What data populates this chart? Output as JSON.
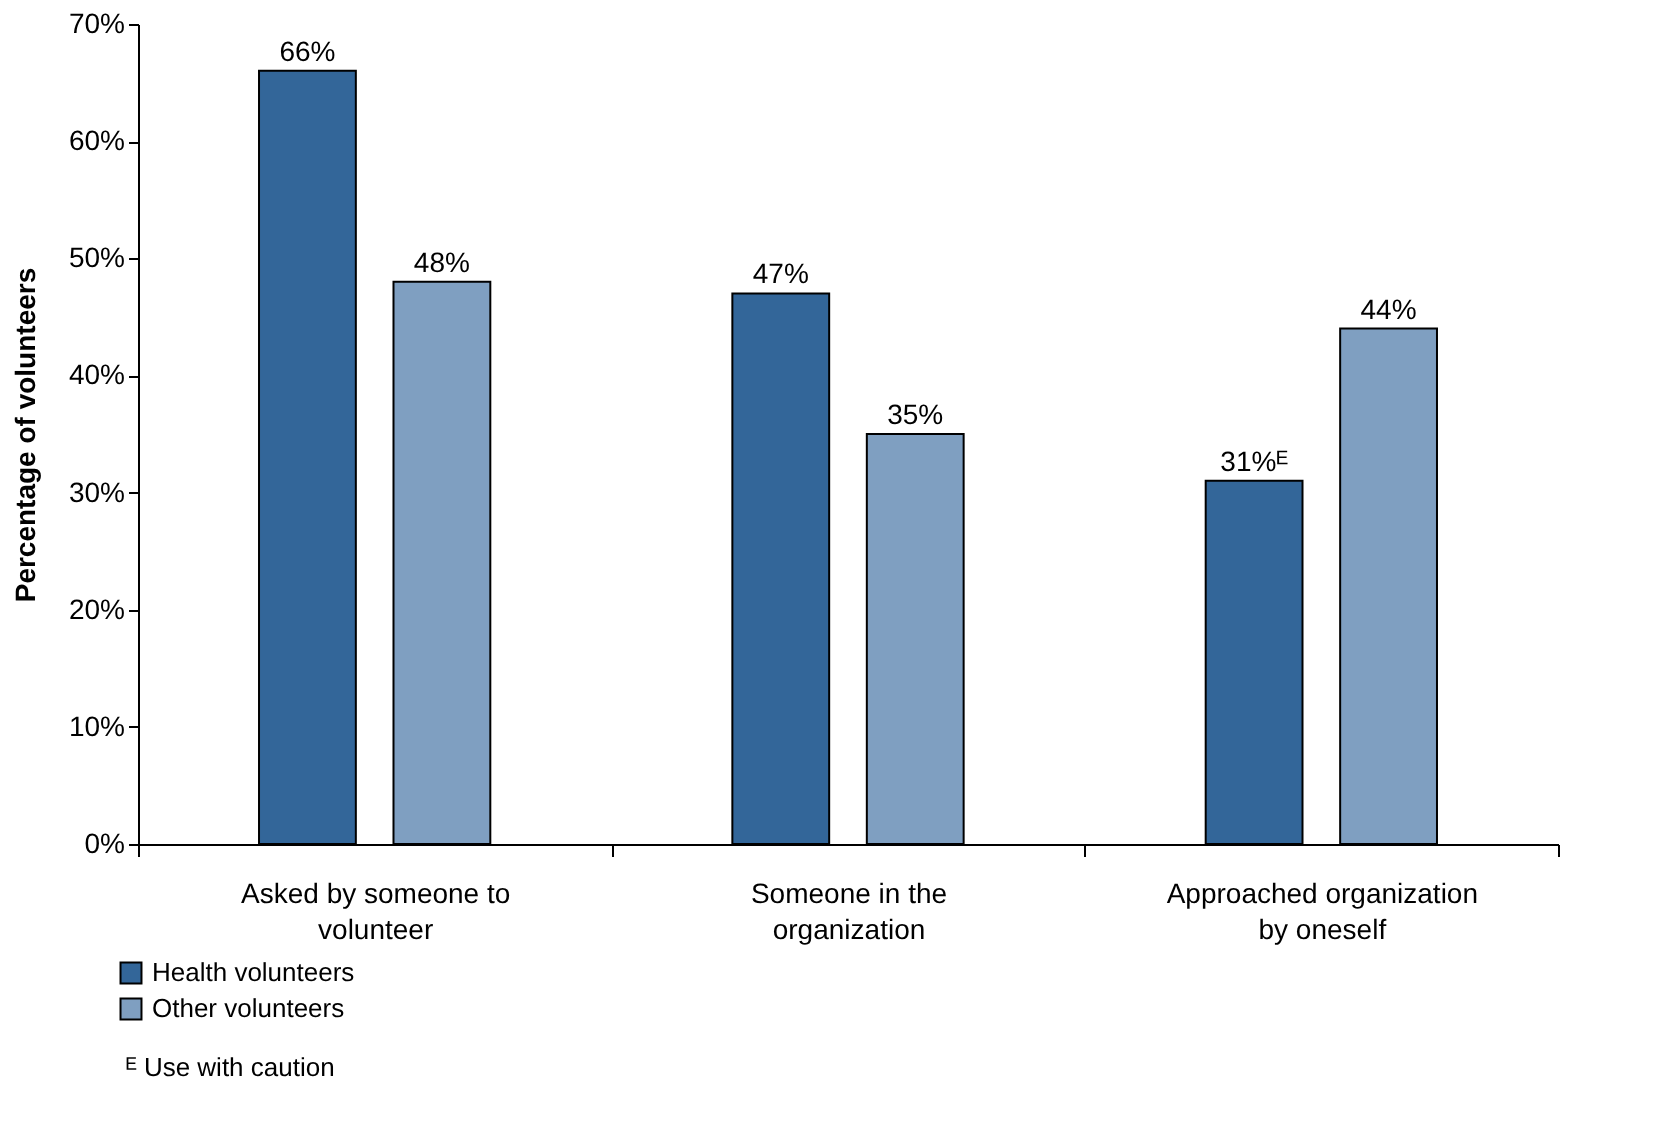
{
  "chart_data": {
    "type": "bar",
    "categories": [
      "Asked by someone to\nvolunteer",
      "Someone in the\norganization",
      "Approached organization\nby oneself"
    ],
    "series": [
      {
        "name": "Health volunteers",
        "color": "#336699",
        "values": [
          66,
          47,
          31
        ],
        "value_labels": [
          "66%",
          "47%",
          "31%ᴱ"
        ]
      },
      {
        "name": "Other volunteers",
        "color": "#7f9fc1",
        "values": [
          48,
          35,
          44
        ],
        "value_labels": [
          "48%",
          "35%",
          "44%"
        ]
      }
    ],
    "ylabel": "Percentage of volunteers",
    "ylim": [
      0,
      70
    ],
    "yticks": [
      {
        "value": 0,
        "label": "0%"
      },
      {
        "value": 10,
        "label": "10%"
      },
      {
        "value": 20,
        "label": "20%"
      },
      {
        "value": 30,
        "label": "30%"
      },
      {
        "value": 40,
        "label": "40%"
      },
      {
        "value": 50,
        "label": "50%"
      },
      {
        "value": 60,
        "label": "60%"
      },
      {
        "value": 70,
        "label": "70%"
      }
    ],
    "grid": false,
    "legend": "bottom left",
    "annotations": [
      "ᴱ Use with caution"
    ]
  }
}
